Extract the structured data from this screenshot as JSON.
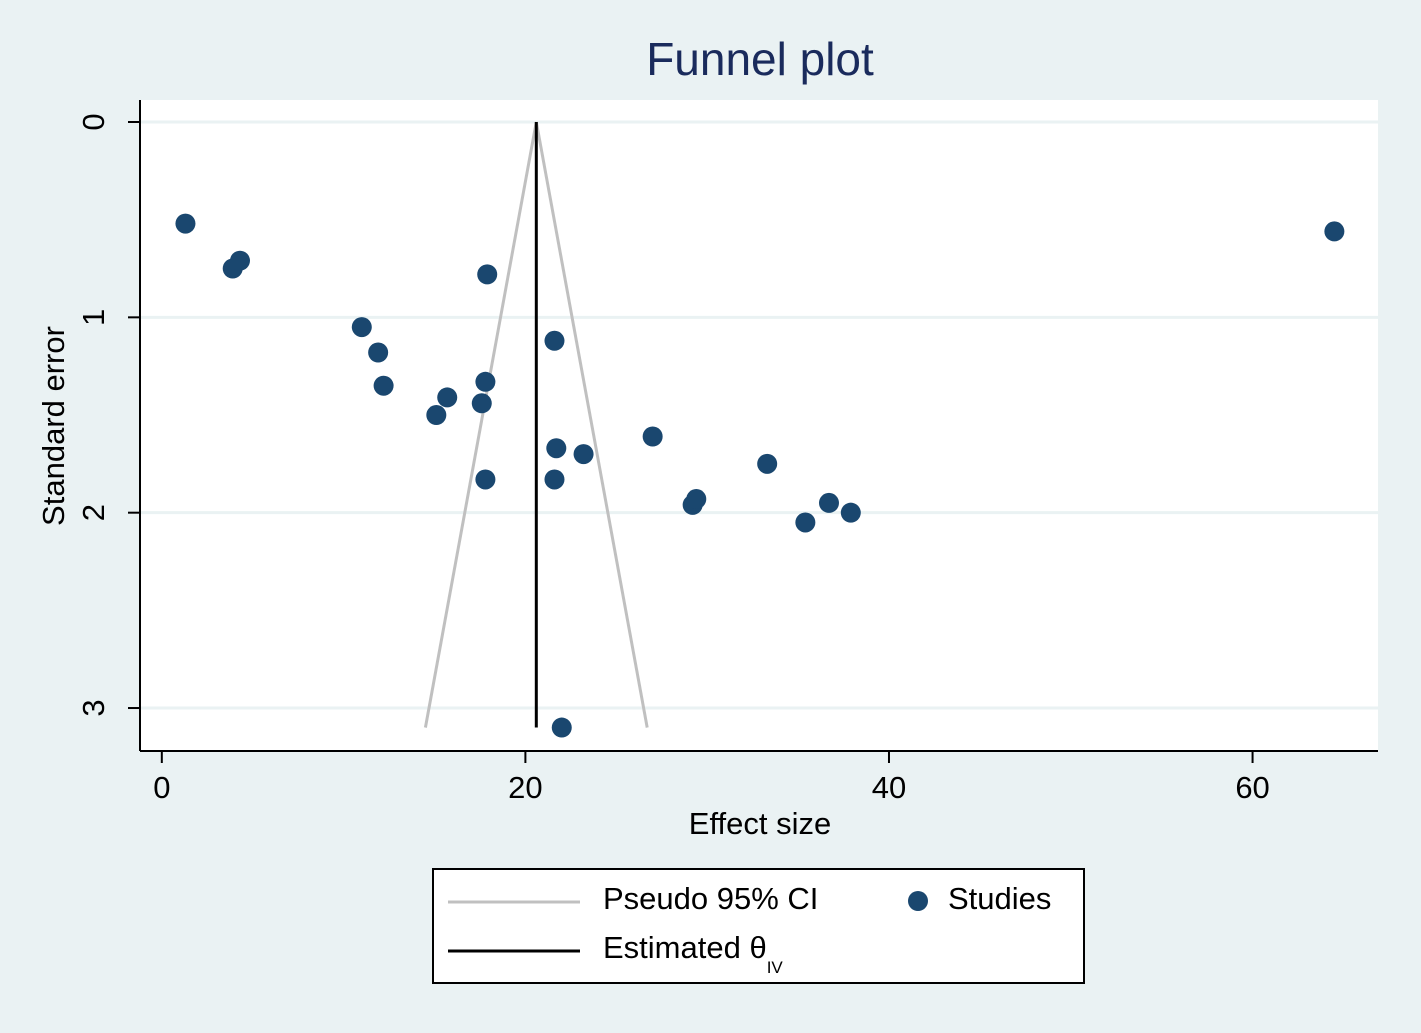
{
  "chart_data": {
    "type": "scatter",
    "title": "Funnel plot",
    "xlabel": "Effect size",
    "ylabel": "Standard error",
    "x_ticks": [
      0,
      20,
      40,
      60
    ],
    "y_ticks": [
      0,
      1,
      2,
      3
    ],
    "xlim": [
      -1.2,
      66.9
    ],
    "ylim": [
      0,
      3.22
    ],
    "y_reversed": true,
    "grid": true,
    "legend_position": "bottom",
    "colors": {
      "studies": "#1a476f",
      "ci": "#c0c0c0",
      "estimate": "#000000",
      "title": "#1a2b5c"
    },
    "estimate": 20.6,
    "ci_apex_se": 0,
    "ci_bottom_se": 3.1,
    "ci_bottom_x": [
      14.5,
      26.7
    ],
    "series": [
      {
        "name": "Studies",
        "points": [
          [
            1.3,
            0.52
          ],
          [
            3.9,
            0.75
          ],
          [
            4.3,
            0.71
          ],
          [
            17.9,
            0.78
          ],
          [
            11.0,
            1.05
          ],
          [
            11.9,
            1.18
          ],
          [
            12.2,
            1.35
          ],
          [
            21.6,
            1.12
          ],
          [
            15.7,
            1.41
          ],
          [
            15.1,
            1.5
          ],
          [
            17.6,
            1.44
          ],
          [
            17.8,
            1.33
          ],
          [
            21.7,
            1.67
          ],
          [
            23.2,
            1.7
          ],
          [
            27.0,
            1.61
          ],
          [
            17.8,
            1.83
          ],
          [
            21.6,
            1.83
          ],
          [
            29.2,
            1.96
          ],
          [
            29.4,
            1.93
          ],
          [
            33.3,
            1.75
          ],
          [
            35.4,
            2.05
          ],
          [
            36.7,
            1.95
          ],
          [
            37.9,
            2.0
          ],
          [
            22.0,
            3.1
          ],
          [
            64.5,
            0.56
          ]
        ]
      }
    ],
    "legend": {
      "ci_label": "Pseudo 95% CI",
      "studies_label": "Studies",
      "estimate_label": "Estimated θ",
      "estimate_subscript": "IV"
    }
  }
}
